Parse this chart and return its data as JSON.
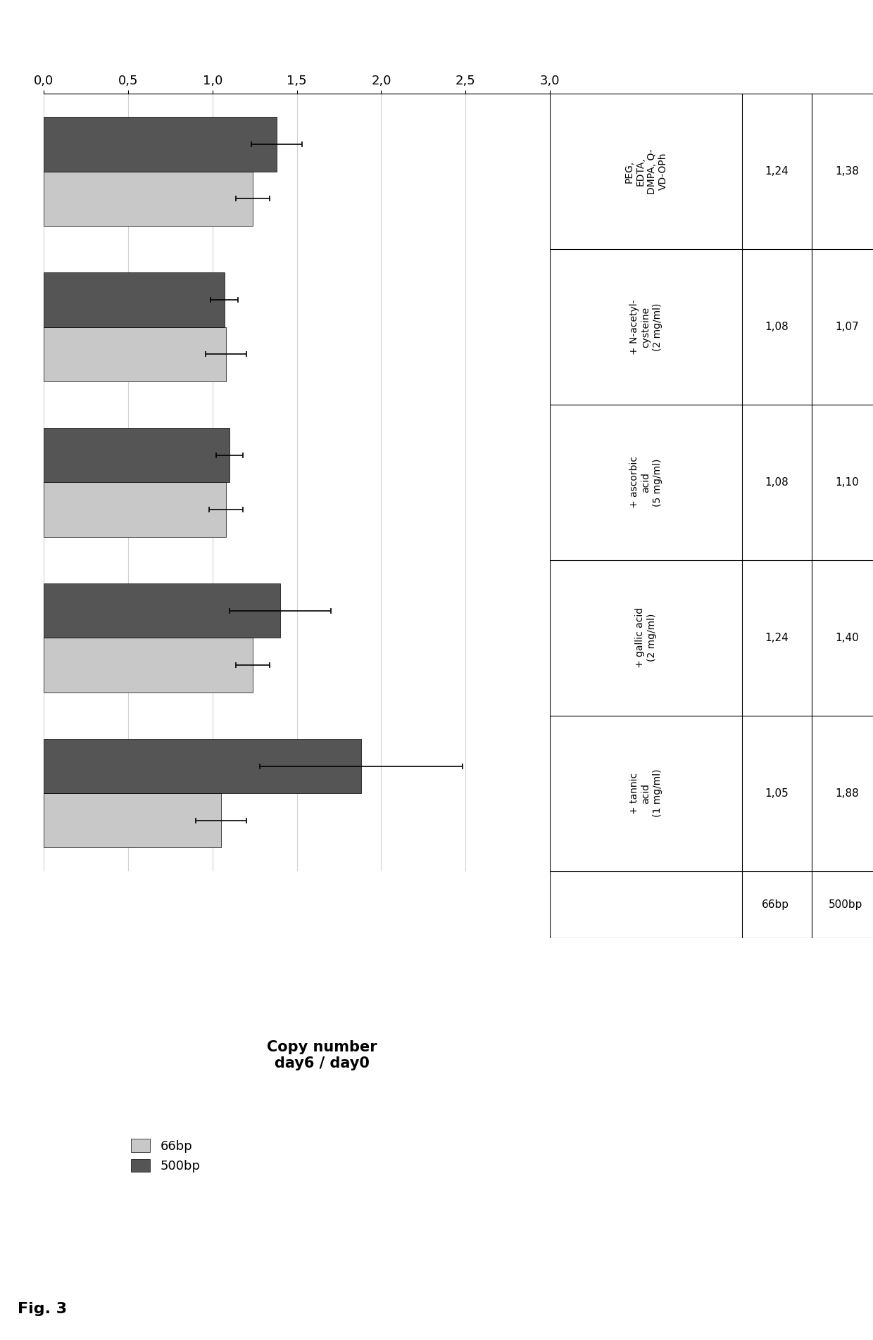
{
  "categories": [
    "PEG,\nEDTA,\nDMPA, Q-\nVD-OPh",
    "+ N-acetyl-\ncysteine\n(2 mg/ml)",
    "+ ascorbic\nacid\n(5 mg/ml)",
    "+ gallic acid\n(2 mg/ml)",
    "+ tannic\nacid\n(1 mg/ml)"
  ],
  "bp66_values": [
    1.24,
    1.08,
    1.08,
    1.24,
    1.05
  ],
  "bp500_values": [
    1.38,
    1.07,
    1.1,
    1.4,
    1.88
  ],
  "bp66_errors": [
    0.1,
    0.12,
    0.1,
    0.1,
    0.15
  ],
  "bp500_errors": [
    0.15,
    0.08,
    0.08,
    0.3,
    0.6
  ],
  "bp66_color": "#c8c8c8",
  "bp500_color": "#555555",
  "xlabel_label": "Copy number\nday6 / day0",
  "xlim": [
    0.0,
    3.0
  ],
  "xticks": [
    0.0,
    0.5,
    1.0,
    1.5,
    2.0,
    2.5,
    3.0
  ],
  "xtick_labels": [
    "0,0",
    "0,5",
    "1,0",
    "1,5",
    "2,0",
    "2,5",
    "3,0"
  ],
  "table_row1": [
    "1,24",
    "1,08",
    "1,08",
    "1,24",
    "1,05"
  ],
  "table_row2": [
    "1,38",
    "1,07",
    "1,10",
    "1,40",
    "1,88"
  ],
  "table_label1": "66bp",
  "table_label2": "500bp",
  "fig_label": "Fig. 3",
  "legend_label1": "66bp",
  "legend_label2": "500bp",
  "bar_height": 0.35,
  "background_color": "#ffffff"
}
